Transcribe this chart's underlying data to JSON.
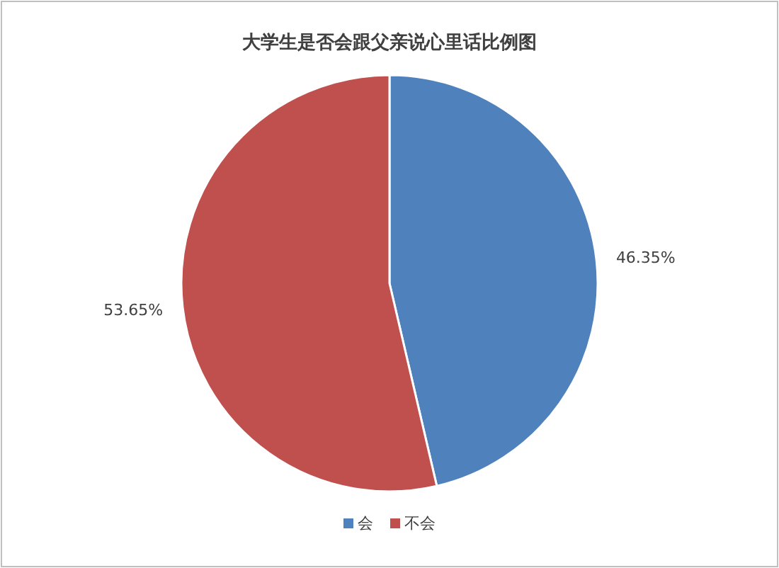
{
  "chart_data": {
    "type": "pie",
    "title": "大学生是否会跟父亲说心里话比例图",
    "categories": [
      "会",
      "不会"
    ],
    "values": [
      46.35,
      53.65
    ],
    "colors": [
      "#4f81bd",
      "#c0504d"
    ],
    "value_labels": [
      "46.35%",
      "53.65%"
    ],
    "legend": "bottom"
  }
}
